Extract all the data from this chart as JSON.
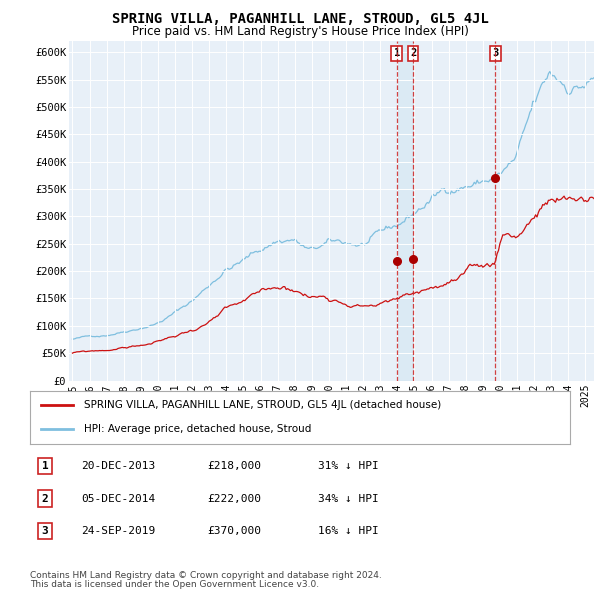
{
  "title": "SPRING VILLA, PAGANHILL LANE, STROUD, GL5 4JL",
  "subtitle": "Price paid vs. HM Land Registry's House Price Index (HPI)",
  "ylabel_ticks": [
    "£0",
    "£50K",
    "£100K",
    "£150K",
    "£200K",
    "£250K",
    "£300K",
    "£350K",
    "£400K",
    "£450K",
    "£500K",
    "£550K",
    "£600K"
  ],
  "ytick_values": [
    0,
    50000,
    100000,
    150000,
    200000,
    250000,
    300000,
    350000,
    400000,
    450000,
    500000,
    550000,
    600000
  ],
  "ylim": [
    0,
    620000
  ],
  "xlim_start": 1994.8,
  "xlim_end": 2025.5,
  "hpi_color": "#7fbfdf",
  "price_color": "#cc1111",
  "sale_marker_color": "#aa0000",
  "vline_color": "#cc2222",
  "background_color": "#e8f0f8",
  "grid_color": "#ffffff",
  "legend_label_red": "SPRING VILLA, PAGANHILL LANE, STROUD, GL5 4JL (detached house)",
  "legend_label_blue": "HPI: Average price, detached house, Stroud",
  "transactions": [
    {
      "num": 1,
      "date": "20-DEC-2013",
      "price": 218000,
      "pct": "31%",
      "dir": "↓",
      "year": 2013.96
    },
    {
      "num": 2,
      "date": "05-DEC-2014",
      "price": 222000,
      "pct": "34%",
      "dir": "↓",
      "year": 2014.92
    },
    {
      "num": 3,
      "date": "24-SEP-2019",
      "price": 370000,
      "pct": "16%",
      "dir": "↓",
      "year": 2019.73
    }
  ],
  "footnote1": "Contains HM Land Registry data © Crown copyright and database right 2024.",
  "footnote2": "This data is licensed under the Open Government Licence v3.0."
}
